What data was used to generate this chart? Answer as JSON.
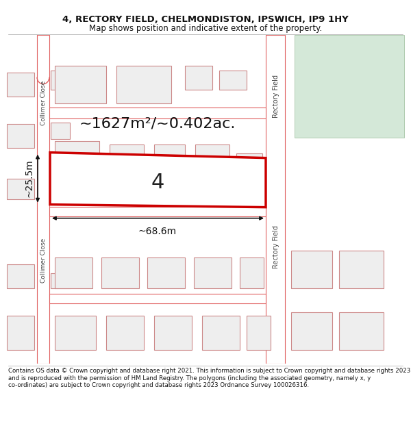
{
  "title_line1": "4, RECTORY FIELD, CHELMONDISTON, IPSWICH, IP9 1HY",
  "title_line2": "Map shows position and indicative extent of the property.",
  "footer_text": "Contains OS data © Crown copyright and database right 2021. This information is subject to Crown copyright and database rights 2023 and is reproduced with the permission of HM Land Registry. The polygons (including the associated geometry, namely x, y co-ordinates) are subject to Crown copyright and database rights 2023 Ordnance Survey 100026316.",
  "area_label": "~1627m²/~0.402ac.",
  "width_label": "~68.6m",
  "height_label": "~25.5m",
  "plot_number": "4",
  "bg_color": "#ffffff",
  "map_bg": "#ffffff",
  "road_line_color": "#e06060",
  "building_fill": "#eeeeee",
  "building_outline": "#cc8888",
  "highlight_fill": "#d4e8d8",
  "highlight_outline": "#99bb99",
  "plot_outline_color": "#cc0000",
  "plot_fill": "#ffffff",
  "dimension_color": "#111111",
  "road_label_color": "#444444",
  "street_label_rectory": "Rectory Field",
  "street_label_collimer": "Collimer Close",
  "title_fontsize": 9.5,
  "subtitle_fontsize": 8.5,
  "footer_fontsize": 6.2
}
